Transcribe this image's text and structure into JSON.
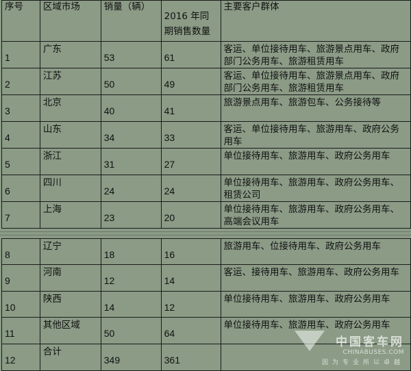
{
  "headers": [
    "序号",
    "区域市场",
    "销量（辆）",
    "2016 年同期销售数量",
    "主要客户群体"
  ],
  "rows": [
    {
      "no": "1",
      "region": "广东",
      "sales": "53",
      "prev": "61",
      "customers": "客运、单位接待用车、旅游景点用车、政府部门公务用车、旅游租赁用车"
    },
    {
      "no": "2",
      "region": "江苏",
      "sales": "50",
      "prev": "49",
      "customers": "客运、单位接待用车、旅游景点用车、政府部门公务用车、旅游租赁用车"
    },
    {
      "no": "3",
      "region": "北京",
      "sales": "40",
      "prev": "41",
      "customers": "旅游景点用车、旅游包车、公务接待等"
    },
    {
      "no": "4",
      "region": "山东",
      "sales": "34",
      "prev": "33",
      "customers": "客运、单位接待用车、旅游用车、政府公务用车"
    },
    {
      "no": "5",
      "region": "浙江",
      "sales": "31",
      "prev": "27",
      "customers": "单位接待用车、旅游用车、政府公务用车"
    },
    {
      "no": "6",
      "region": "四川",
      "sales": "24",
      "prev": "24",
      "customers": "单位接待用车、旅游用车、政府公务用车、租赁公司"
    },
    {
      "no": "7",
      "region": "上海",
      "sales": "23",
      "prev": "20",
      "customers": "单位接待用车、旅游用车、政府公务用车、高端会议用车"
    },
    {
      "no": "8",
      "region": "辽宁",
      "sales": "18",
      "prev": "16",
      "customers": "旅游用车、位接待用车、政府公务用车"
    },
    {
      "no": "9",
      "region": "河南",
      "sales": "12",
      "prev": "14",
      "customers": "客运、接待用车、旅游用车、政府公务用车"
    },
    {
      "no": "10",
      "region": "陕西",
      "sales": "14",
      "prev": "12",
      "customers": "单位接待用车、旅游用车、政府公务用车"
    },
    {
      "no": "11",
      "region": "其他区域",
      "sales": "50",
      "prev": "64",
      "customers": "单位接待用车、旅游用车、政府公务用车"
    },
    {
      "no": "12",
      "region": "合计",
      "sales": "349",
      "prev": "361",
      "customers": ""
    }
  ],
  "watermark": {
    "cn": "中国客车网",
    "en": "CHINABUSES.COM",
    "slogan": "因为专业所以卓越"
  }
}
